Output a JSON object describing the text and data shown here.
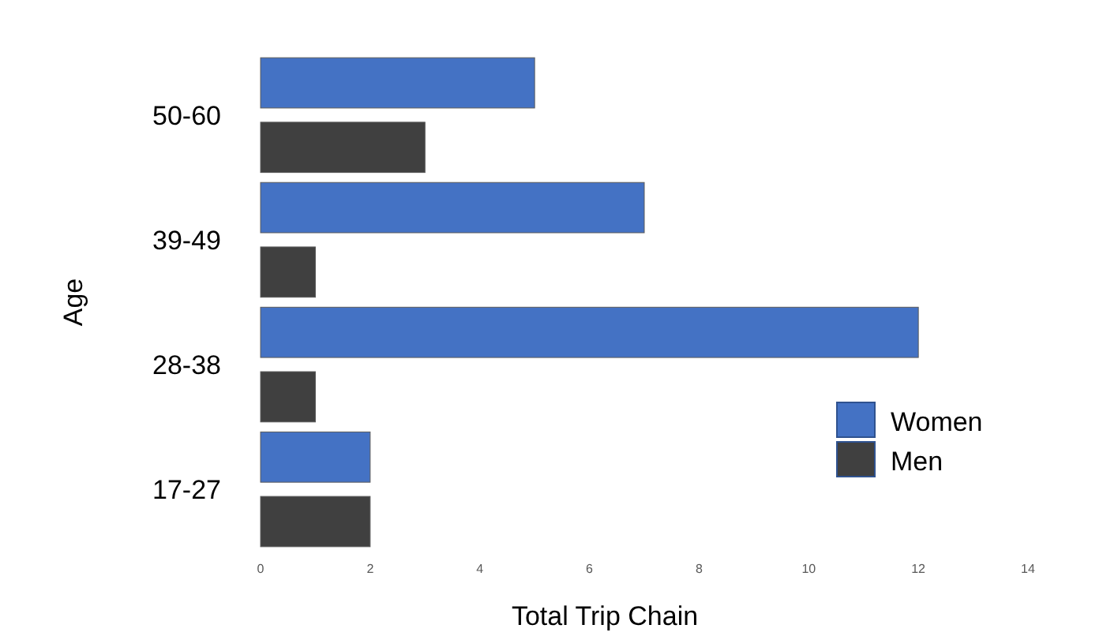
{
  "chart_data": {
    "type": "bar",
    "orientation": "horizontal",
    "xlabel": "Total Trip Chain",
    "ylabel": "Age",
    "categories": [
      "50-60",
      "39-49",
      "28-38",
      "17-27"
    ],
    "series": [
      {
        "name": "Women",
        "color": "#4472c4",
        "values": [
          5,
          7,
          12,
          2
        ]
      },
      {
        "name": "Men",
        "color": "#404040",
        "values": [
          3,
          1,
          1,
          2
        ]
      }
    ],
    "xlim": [
      0,
      14
    ],
    "xticks": [
      0,
      2,
      4,
      6,
      8,
      10,
      12,
      14
    ],
    "legend": "right"
  }
}
